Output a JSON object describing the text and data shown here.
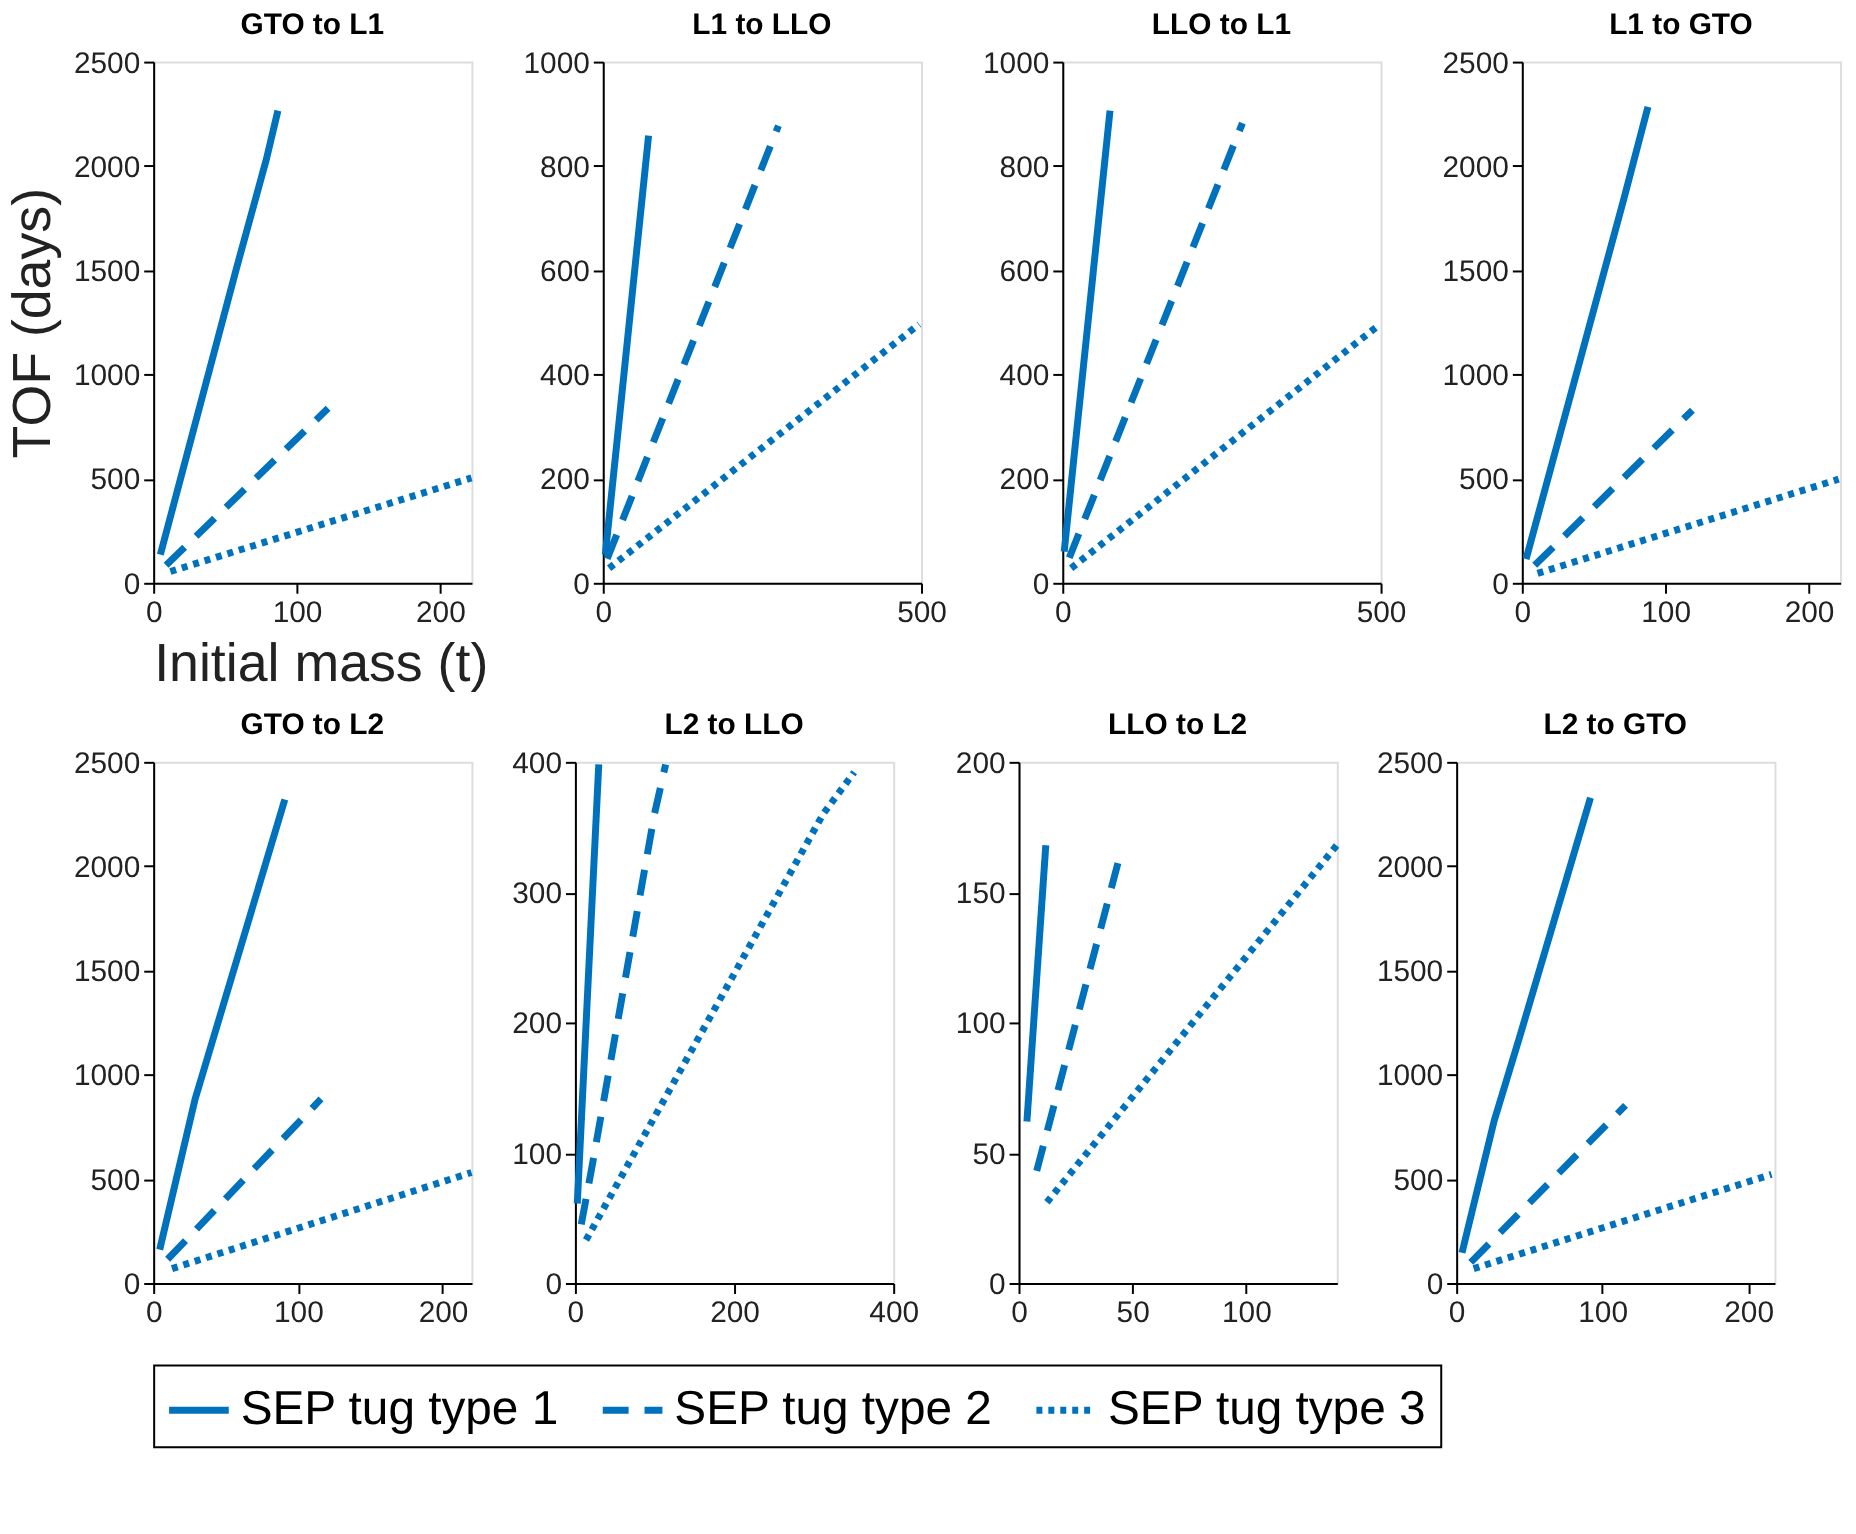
{
  "chart_data": [
    {
      "type": "line",
      "title": "GTO to L1",
      "xlabel": "Initial mass (t)",
      "ylabel": "TOF (days)",
      "xlim": [
        0,
        222
      ],
      "xticks": [
        0,
        100,
        200
      ],
      "ylim": [
        0,
        2500
      ],
      "yticks": [
        0,
        500,
        1000,
        1500,
        2000,
        2500
      ],
      "legend": "bottom",
      "grid": false,
      "series": [
        {
          "name": "SEP tug type 1",
          "color": "#0072bd",
          "line_style": "solid",
          "x": [
            5,
            58,
            79,
            87
          ],
          "values": [
            135,
            1506,
            2033,
            2265
          ]
        },
        {
          "name": "SEP tug type 2",
          "color": "#0072bd",
          "line_style": "dashed",
          "x": [
            9,
            122
          ],
          "values": [
            84,
            837
          ]
        },
        {
          "name": "SEP tug type 3",
          "color": "#0072bd",
          "line_style": "dotted",
          "x": [
            12,
            222
          ],
          "values": [
            54,
            503
          ]
        }
      ]
    },
    {
      "type": "line",
      "title": "L1 to LLO",
      "xlim": [
        0,
        500
      ],
      "xticks": [
        0,
        500
      ],
      "ylim": [
        0,
        1000
      ],
      "yticks": [
        0,
        200,
        400,
        600,
        800,
        1000
      ],
      "grid": false,
      "series": [
        {
          "name": "SEP tug type 1",
          "color": "#0072bd",
          "line_style": "solid",
          "x": [
            4,
            72
          ],
          "values": [
            54,
            858
          ]
        },
        {
          "name": "SEP tug type 2",
          "color": "#0072bd",
          "line_style": "dashed",
          "x": [
            7,
            276
          ],
          "values": [
            46,
            877
          ]
        },
        {
          "name": "SEP tug type 3",
          "color": "#0072bd",
          "line_style": "dotted",
          "x": [
            10,
            497
          ],
          "values": [
            28,
            496
          ]
        }
      ]
    },
    {
      "type": "line",
      "title": "LLO to L1",
      "xlim": [
        0,
        500
      ],
      "xticks": [
        0,
        500
      ],
      "ylim": [
        0,
        1000
      ],
      "yticks": [
        0,
        200,
        400,
        600,
        800,
        1000
      ],
      "grid": false,
      "series": [
        {
          "name": "SEP tug type 1",
          "color": "#0072bd",
          "line_style": "solid",
          "x": [
            3,
            75
          ],
          "values": [
            60,
            906
          ]
        },
        {
          "name": "SEP tug type 2",
          "color": "#0072bd",
          "line_style": "dashed",
          "x": [
            11,
            283
          ],
          "values": [
            48,
            882
          ]
        },
        {
          "name": "SEP tug type 3",
          "color": "#0072bd",
          "line_style": "dotted",
          "x": [
            14,
            497
          ],
          "values": [
            28,
            494
          ]
        }
      ]
    },
    {
      "type": "line",
      "title": "L1 to GTO",
      "xlim": [
        0,
        222
      ],
      "xticks": [
        0,
        100,
        200
      ],
      "ylim": [
        0,
        2500
      ],
      "yticks": [
        0,
        500,
        1000,
        1500,
        2000,
        2500
      ],
      "grid": false,
      "series": [
        {
          "name": "SEP tug type 1",
          "color": "#0072bd",
          "line_style": "solid",
          "x": [
            3,
            71,
            88
          ],
          "values": [
            114,
            1837,
            2283
          ]
        },
        {
          "name": "SEP tug type 2",
          "color": "#0072bd",
          "line_style": "dashed",
          "x": [
            9,
            119
          ],
          "values": [
            84,
            828
          ]
        },
        {
          "name": "SEP tug type 3",
          "color": "#0072bd",
          "line_style": "dotted",
          "x": [
            11,
            221
          ],
          "values": [
            45,
            497
          ]
        }
      ]
    },
    {
      "type": "line",
      "title": "GTO to L2",
      "xlim": [
        0,
        220
      ],
      "xticks": [
        0,
        100,
        200
      ],
      "ylim": [
        0,
        2500
      ],
      "yticks": [
        0,
        500,
        1000,
        1500,
        2000,
        2500
      ],
      "grid": false,
      "series": [
        {
          "name": "SEP tug type 1",
          "color": "#0072bd",
          "line_style": "solid",
          "x": [
            4.5,
            29,
            91
          ],
          "values": [
            160,
            883,
            2319
          ]
        },
        {
          "name": "SEP tug type 2",
          "color": "#0072bd",
          "line_style": "dashed",
          "x": [
            10,
            116
          ],
          "values": [
            114,
            883
          ]
        },
        {
          "name": "SEP tug type 3",
          "color": "#0072bd",
          "line_style": "dotted",
          "x": [
            13,
            220
          ],
          "values": [
            69,
            530
          ]
        }
      ]
    },
    {
      "type": "line",
      "title": "L2 to LLO",
      "xlim": [
        0,
        400
      ],
      "xticks": [
        0,
        200,
        400
      ],
      "ylim": [
        0,
        400
      ],
      "yticks": [
        0,
        100,
        200,
        300,
        400
      ],
      "grid": false,
      "series": [
        {
          "name": "SEP tug type 1",
          "color": "#0072bd",
          "line_style": "solid",
          "x": [
            3,
            30
          ],
          "values": [
            61,
            398
          ]
        },
        {
          "name": "SEP tug type 2",
          "color": "#0072bd",
          "line_style": "dashed",
          "x": [
            8,
            22,
            100,
            114
          ],
          "values": [
            45,
            91,
            360,
            398
          ]
        },
        {
          "name": "SEP tug type 3",
          "color": "#0072bd",
          "line_style": "dotted",
          "x": [
            14,
            312,
            351
          ],
          "values": [
            33,
            360,
            392
          ]
        }
      ]
    },
    {
      "type": "line",
      "title": "LLO to L2",
      "xlim": [
        0,
        140
      ],
      "xticks": [
        0,
        50,
        100
      ],
      "ylim": [
        0,
        200
      ],
      "yticks": [
        0,
        50,
        100,
        150,
        200
      ],
      "grid": false,
      "series": [
        {
          "name": "SEP tug type 1",
          "color": "#0072bd",
          "line_style": "solid",
          "x": [
            3.7,
            12
          ],
          "values": [
            62,
            168
          ]
        },
        {
          "name": "SEP tug type 2",
          "color": "#0072bd",
          "line_style": "dashed",
          "x": [
            8,
            44
          ],
          "values": [
            43,
            162
          ]
        },
        {
          "name": "SEP tug type 3",
          "color": "#0072bd",
          "line_style": "dotted",
          "x": [
            12.5,
            140
          ],
          "values": [
            31,
            168
          ]
        }
      ]
    },
    {
      "type": "line",
      "title": "L2 to GTO",
      "xlim": [
        0,
        218
      ],
      "xticks": [
        0,
        100,
        200
      ],
      "ylim": [
        0,
        2500
      ],
      "yticks": [
        0,
        500,
        1000,
        1500,
        2000,
        2500
      ],
      "grid": false,
      "series": [
        {
          "name": "SEP tug type 1",
          "color": "#0072bd",
          "line_style": "solid",
          "x": [
            4,
            26,
            43,
            92
          ],
          "values": [
            145,
            777,
            1169,
            2328
          ]
        },
        {
          "name": "SEP tug type 2",
          "color": "#0072bd",
          "line_style": "dashed",
          "x": [
            10,
            116
          ],
          "values": [
            99,
            852
          ]
        },
        {
          "name": "SEP tug type 3",
          "color": "#0072bd",
          "line_style": "dotted",
          "x": [
            12,
            216
          ],
          "values": [
            69,
            521
          ]
        }
      ]
    }
  ]
}
